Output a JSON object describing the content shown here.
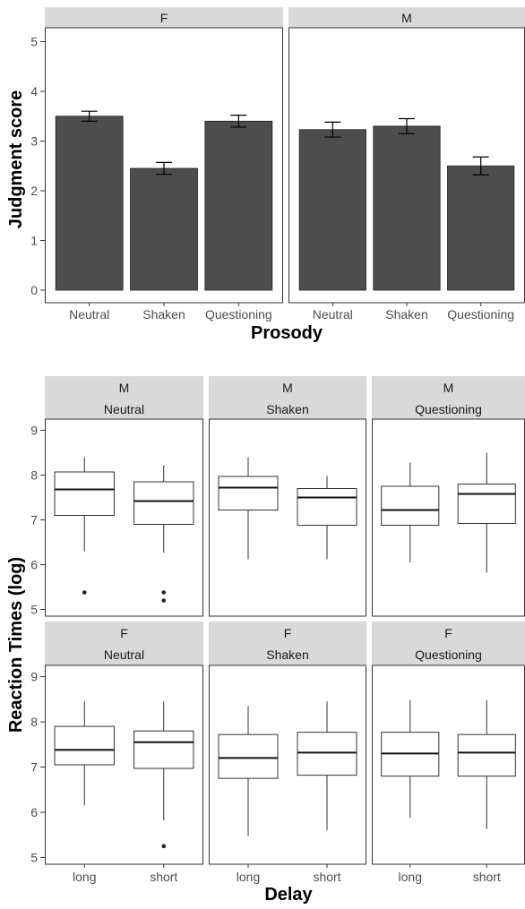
{
  "chart_data": [
    {
      "type": "bar",
      "xlabel": "Prosody",
      "ylabel": "Judgment score",
      "ylim": [
        0,
        5
      ],
      "yticks": [
        "0",
        "1",
        "2",
        "3",
        "4",
        "5"
      ],
      "grid": false,
      "bar_color": "#4d4d4d",
      "panels": [
        {
          "strip": "F",
          "categories": [
            "Neutral",
            "Shaken",
            "Questioning"
          ],
          "values": [
            3.5,
            2.45,
            3.4
          ],
          "error": [
            0.1,
            0.12,
            0.12
          ]
        },
        {
          "strip": "M",
          "categories": [
            "Neutral",
            "Shaken",
            "Questioning"
          ],
          "values": [
            3.23,
            3.3,
            2.5
          ],
          "error": [
            0.15,
            0.15,
            0.18
          ]
        }
      ]
    },
    {
      "type": "box",
      "xlabel": "Delay",
      "ylabel": "Reaction Times (log)",
      "ylim": [
        4.85,
        9.25
      ],
      "yticks": [
        "5",
        "6",
        "7",
        "8",
        "9"
      ],
      "grid": false,
      "categories": [
        "long",
        "short"
      ],
      "panels": [
        {
          "strip_top": "M",
          "strip_bottom": "Neutral",
          "boxes": [
            {
              "min": 6.3,
              "q1": 7.1,
              "median": 7.68,
              "q3": 8.07,
              "max": 8.4,
              "outliers": [
                5.38
              ]
            },
            {
              "min": 6.27,
              "q1": 6.9,
              "median": 7.42,
              "q3": 7.85,
              "max": 8.22,
              "outliers": [
                5.38,
                5.2
              ]
            }
          ]
        },
        {
          "strip_top": "M",
          "strip_bottom": "Shaken",
          "boxes": [
            {
              "min": 6.12,
              "q1": 7.22,
              "median": 7.72,
              "q3": 7.97,
              "max": 8.4,
              "outliers": []
            },
            {
              "min": 6.12,
              "q1": 6.88,
              "median": 7.5,
              "q3": 7.7,
              "max": 7.98,
              "outliers": []
            }
          ]
        },
        {
          "strip_top": "M",
          "strip_bottom": "Questioning",
          "boxes": [
            {
              "min": 6.05,
              "q1": 6.88,
              "median": 7.22,
              "q3": 7.75,
              "max": 8.28,
              "outliers": []
            },
            {
              "min": 5.82,
              "q1": 6.92,
              "median": 7.58,
              "q3": 7.8,
              "max": 8.5,
              "outliers": []
            }
          ]
        },
        {
          "strip_top": "F",
          "strip_bottom": "Neutral",
          "boxes": [
            {
              "min": 6.15,
              "q1": 7.05,
              "median": 7.38,
              "q3": 7.9,
              "max": 8.45,
              "outliers": []
            },
            {
              "min": 5.82,
              "q1": 6.97,
              "median": 7.55,
              "q3": 7.8,
              "max": 8.45,
              "outliers": [
                5.25
              ]
            }
          ]
        },
        {
          "strip_top": "F",
          "strip_bottom": "Shaken",
          "boxes": [
            {
              "min": 5.48,
              "q1": 6.75,
              "median": 7.2,
              "q3": 7.72,
              "max": 8.35,
              "outliers": []
            },
            {
              "min": 5.6,
              "q1": 6.82,
              "median": 7.32,
              "q3": 7.77,
              "max": 8.45,
              "outliers": []
            }
          ]
        },
        {
          "strip_top": "F",
          "strip_bottom": "Questioning",
          "boxes": [
            {
              "min": 5.88,
              "q1": 6.8,
              "median": 7.3,
              "q3": 7.77,
              "max": 8.48,
              "outliers": []
            },
            {
              "min": 5.63,
              "q1": 6.8,
              "median": 7.32,
              "q3": 7.72,
              "max": 8.48,
              "outliers": []
            }
          ]
        }
      ]
    }
  ]
}
